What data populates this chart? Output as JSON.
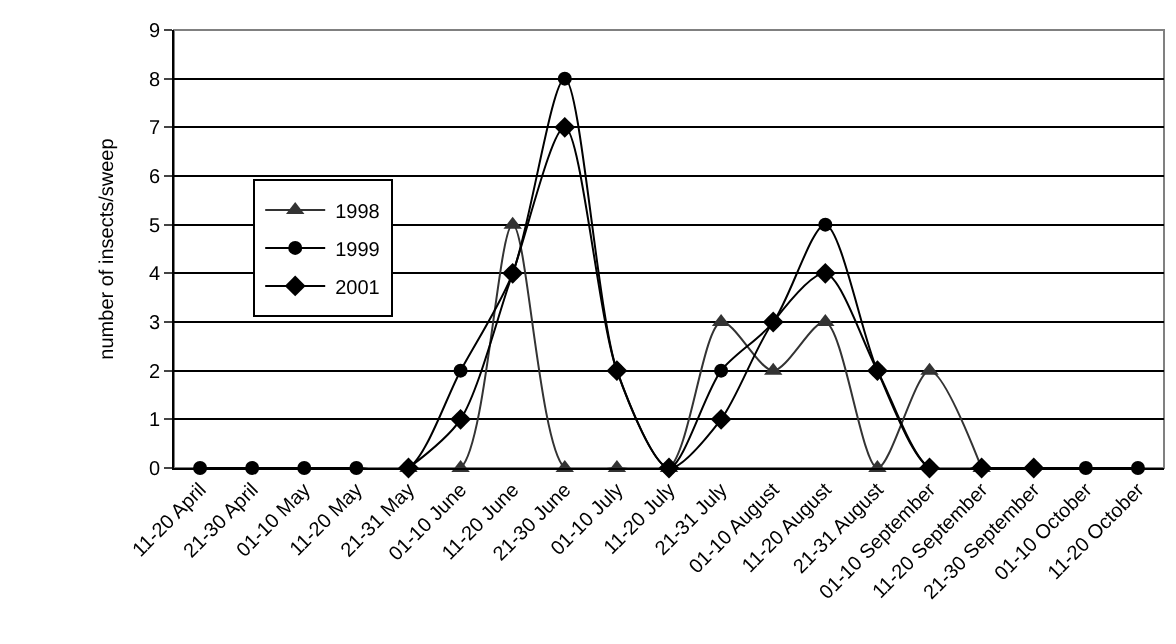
{
  "chart_data": {
    "type": "line",
    "ylabel": "number of insects/sweep",
    "categories": [
      "11-20 April",
      "21-30 April",
      "01-10 May",
      "11-20 May",
      "21-31 May",
      "01-10 June",
      "11-20 June",
      "21-30 June",
      "01-10 July",
      "11-20 July",
      "21-31 July",
      "01-10 August",
      "11-20 August",
      "21-31 August",
      "01-10 September",
      "11-20 September",
      "21-30 September",
      "01-10 October",
      "11-20 October"
    ],
    "series": [
      {
        "name": "1998",
        "color": "#333333",
        "marker": "triangle",
        "values": [
          null,
          null,
          null,
          null,
          0,
          0,
          5,
          0,
          0,
          0,
          3,
          2,
          3,
          0,
          2,
          0,
          null,
          null,
          null
        ]
      },
      {
        "name": "1999",
        "color": "#000000",
        "marker": "circle",
        "values": [
          0,
          0,
          0,
          0,
          0,
          2,
          4,
          8,
          2,
          0,
          2,
          3,
          5,
          2,
          0,
          0,
          0,
          0,
          0
        ]
      },
      {
        "name": "2001",
        "color": "#000000",
        "marker": "diamond",
        "values": [
          null,
          null,
          null,
          null,
          0,
          1,
          4,
          7,
          2,
          0,
          1,
          3,
          4,
          2,
          0,
          0,
          0,
          null,
          null
        ]
      }
    ],
    "ylim": [
      0,
      9
    ],
    "yticks": [
      0,
      1,
      2,
      3,
      4,
      5,
      6,
      7,
      8,
      9
    ],
    "grid": "y",
    "legend": "left",
    "line_style": "solid"
  }
}
